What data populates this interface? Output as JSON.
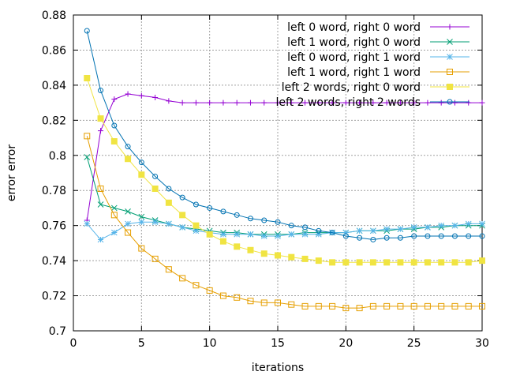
{
  "chart_data": {
    "type": "line",
    "xlabel": "iterations",
    "ylabel": "error error",
    "xlim": [
      0,
      30
    ],
    "ylim": [
      0.7,
      0.88
    ],
    "xticks": [
      0,
      5,
      10,
      15,
      20,
      25,
      30
    ],
    "yticks": [
      0.7,
      0.72,
      0.74,
      0.76,
      0.78,
      0.8,
      0.82,
      0.84,
      0.86,
      0.88
    ],
    "grid": true,
    "legend_position": "top-right",
    "series": [
      {
        "name": "left 0 word, right 0 word",
        "color": "#9400d3",
        "marker": "plus",
        "x": [
          1,
          2,
          3,
          4,
          5,
          6,
          7,
          8,
          9,
          10,
          11,
          12,
          13,
          14,
          15,
          16,
          17,
          18,
          19,
          20,
          21,
          22,
          23,
          24,
          25,
          26,
          27,
          28,
          29,
          30
        ],
        "y": [
          0.763,
          0.814,
          0.832,
          0.835,
          0.834,
          0.833,
          0.831,
          0.83,
          0.83,
          0.83,
          0.83,
          0.83,
          0.83,
          0.83,
          0.83,
          0.83,
          0.83,
          0.83,
          0.83,
          0.83,
          0.83,
          0.83,
          0.83,
          0.83,
          0.83,
          0.83,
          0.83,
          0.83,
          0.83,
          0.83
        ]
      },
      {
        "name": "left 1 word, right 0 word",
        "color": "#009e73",
        "marker": "cross",
        "x": [
          1,
          2,
          3,
          4,
          5,
          6,
          7,
          8,
          9,
          10,
          11,
          12,
          13,
          14,
          15,
          16,
          17,
          18,
          19,
          20,
          21,
          22,
          23,
          24,
          25,
          26,
          27,
          28,
          29,
          30
        ],
        "y": [
          0.799,
          0.772,
          0.77,
          0.768,
          0.765,
          0.763,
          0.761,
          0.759,
          0.758,
          0.757,
          0.756,
          0.756,
          0.755,
          0.755,
          0.755,
          0.755,
          0.756,
          0.756,
          0.756,
          0.756,
          0.757,
          0.757,
          0.757,
          0.758,
          0.758,
          0.759,
          0.759,
          0.76,
          0.76,
          0.76
        ]
      },
      {
        "name": "left 0 word, right 1 word",
        "color": "#56b4e9",
        "marker": "star",
        "x": [
          1,
          2,
          3,
          4,
          5,
          6,
          7,
          8,
          9,
          10,
          11,
          12,
          13,
          14,
          15,
          16,
          17,
          18,
          19,
          20,
          21,
          22,
          23,
          24,
          25,
          26,
          27,
          28,
          29,
          30
        ],
        "y": [
          0.761,
          0.752,
          0.756,
          0.761,
          0.762,
          0.762,
          0.761,
          0.759,
          0.757,
          0.756,
          0.755,
          0.755,
          0.755,
          0.754,
          0.754,
          0.755,
          0.755,
          0.755,
          0.756,
          0.756,
          0.757,
          0.757,
          0.758,
          0.758,
          0.759,
          0.759,
          0.76,
          0.76,
          0.761,
          0.761
        ]
      },
      {
        "name": "left 1 word, right 1 word",
        "color": "#e69f00",
        "marker": "square-open",
        "x": [
          1,
          2,
          3,
          4,
          5,
          6,
          7,
          8,
          9,
          10,
          11,
          12,
          13,
          14,
          15,
          16,
          17,
          18,
          19,
          20,
          21,
          22,
          23,
          24,
          25,
          26,
          27,
          28,
          29,
          30
        ],
        "y": [
          0.811,
          0.781,
          0.766,
          0.756,
          0.747,
          0.741,
          0.735,
          0.73,
          0.726,
          0.723,
          0.72,
          0.719,
          0.717,
          0.716,
          0.716,
          0.715,
          0.714,
          0.714,
          0.714,
          0.713,
          0.713,
          0.714,
          0.714,
          0.714,
          0.714,
          0.714,
          0.714,
          0.714,
          0.714,
          0.714
        ]
      },
      {
        "name": "left 2 words, right 0 word",
        "color": "#f0e442",
        "marker": "square-filled",
        "x": [
          1,
          2,
          3,
          4,
          5,
          6,
          7,
          8,
          9,
          10,
          11,
          12,
          13,
          14,
          15,
          16,
          17,
          18,
          19,
          20,
          21,
          22,
          23,
          24,
          25,
          26,
          27,
          28,
          29,
          30
        ],
        "y": [
          0.844,
          0.821,
          0.808,
          0.798,
          0.789,
          0.781,
          0.773,
          0.766,
          0.76,
          0.755,
          0.751,
          0.748,
          0.746,
          0.744,
          0.743,
          0.742,
          0.741,
          0.74,
          0.739,
          0.739,
          0.739,
          0.739,
          0.739,
          0.739,
          0.739,
          0.739,
          0.739,
          0.739,
          0.739,
          0.74
        ]
      },
      {
        "name": "left 2 words, right 2 words",
        "color": "#0072b2",
        "marker": "circle-open",
        "x": [
          1,
          2,
          3,
          4,
          5,
          6,
          7,
          8,
          9,
          10,
          11,
          12,
          13,
          14,
          15,
          16,
          17,
          18,
          19,
          20,
          21,
          22,
          23,
          24,
          25,
          26,
          27,
          28,
          29,
          30
        ],
        "y": [
          0.871,
          0.837,
          0.817,
          0.805,
          0.796,
          0.788,
          0.781,
          0.776,
          0.772,
          0.77,
          0.768,
          0.766,
          0.764,
          0.763,
          0.762,
          0.76,
          0.759,
          0.757,
          0.756,
          0.754,
          0.753,
          0.752,
          0.753,
          0.753,
          0.754,
          0.754,
          0.754,
          0.754,
          0.754,
          0.754
        ]
      }
    ]
  }
}
